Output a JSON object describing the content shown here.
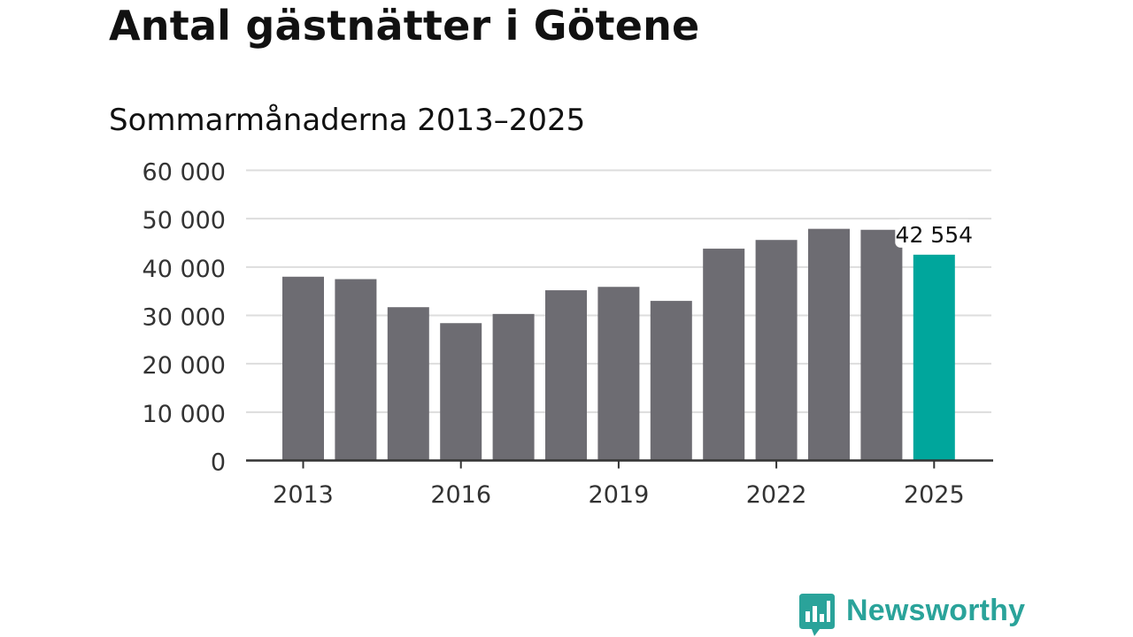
{
  "chart_data": {
    "type": "bar",
    "title": "Antal gästnätter i Götene",
    "subtitle": "Sommarmånaderna 2013–2025",
    "xlabel": "",
    "ylabel": "",
    "categories": [
      "2013",
      "2014",
      "2015",
      "2016",
      "2017",
      "2018",
      "2019",
      "2020",
      "2021",
      "2022",
      "2023",
      "2024",
      "2025"
    ],
    "values": [
      38000,
      37500,
      31700,
      28400,
      30300,
      35200,
      35900,
      33000,
      43800,
      45600,
      47900,
      47700,
      42554
    ],
    "ylim": [
      0,
      60000
    ],
    "yticks": [
      0,
      10000,
      20000,
      30000,
      40000,
      50000,
      60000
    ],
    "ytick_labels": [
      "0",
      "10 000",
      "20 000",
      "30 000",
      "40 000",
      "50 000",
      "60 000"
    ],
    "xticks": [
      "2013",
      "2016",
      "2019",
      "2022",
      "2025"
    ],
    "highlight_label": "42 554",
    "grid": true,
    "legend": "none",
    "colors": {
      "bar": "#6d6c72",
      "highlight": "#00a69c",
      "grid": "#dddddd",
      "axis": "#333333"
    }
  },
  "brand": {
    "name": "Newsworthy",
    "logo_icon": "newsworthy-chart-bubble-icon",
    "color": "#2aa39a"
  }
}
